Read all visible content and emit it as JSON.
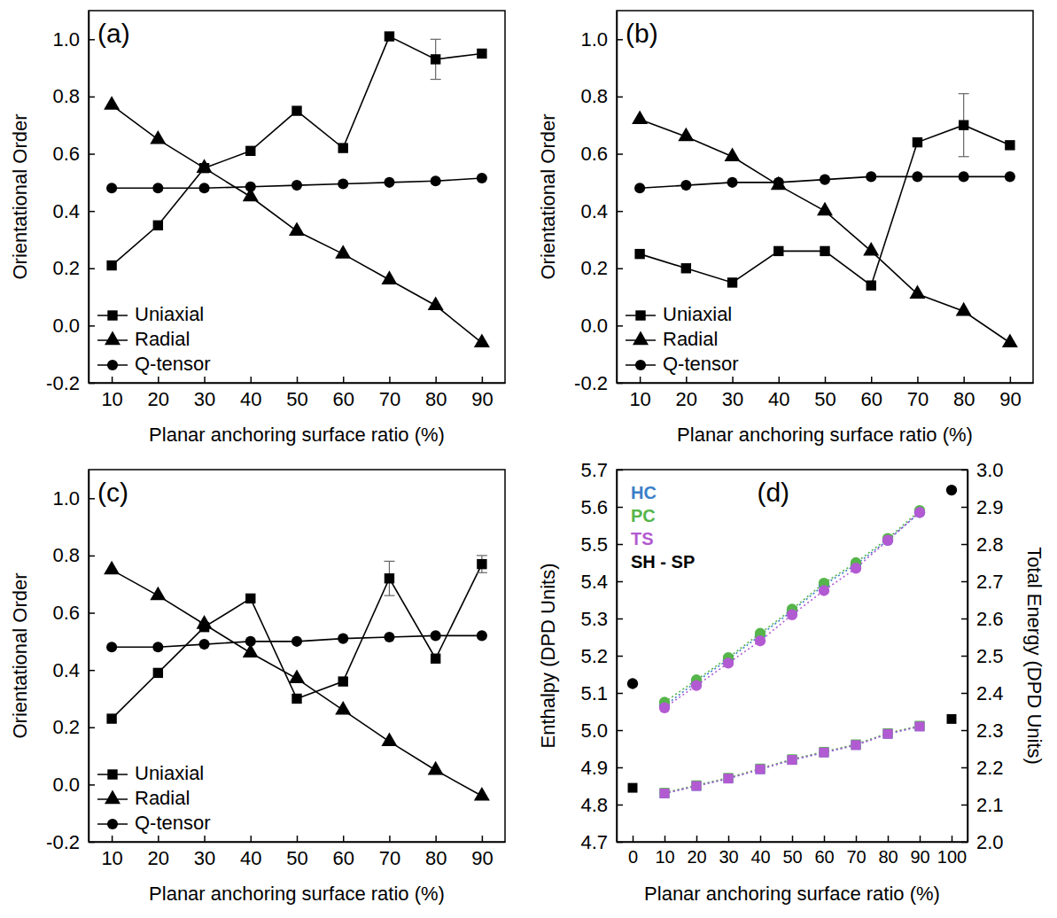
{
  "chart_data": [
    {
      "type": "line",
      "title": "(a)",
      "xlabel": "Planar anchoring surface ratio (%)",
      "ylabel": "Orientational Order",
      "x": [
        10,
        20,
        30,
        40,
        50,
        60,
        70,
        80,
        90
      ],
      "xlim": [
        5,
        95
      ],
      "xticks": [
        10,
        20,
        30,
        40,
        50,
        60,
        70,
        80,
        90
      ],
      "ylim": [
        -0.2,
        1.1
      ],
      "yticks": [
        -0.2,
        {
          "value": 0,
          "label": "0.0"
        },
        0.2,
        0.4,
        0.6,
        0.8,
        {
          "value": 1,
          "label": "1.0"
        }
      ],
      "legend": "lower left",
      "series": [
        {
          "name": "Uniaxial",
          "color": "#000000",
          "marker": "square",
          "values": [
            0.21,
            0.35,
            0.55,
            0.61,
            0.75,
            0.62,
            1.01,
            0.93,
            0.95
          ],
          "errors": [
            null,
            null,
            null,
            null,
            null,
            null,
            null,
            0.07,
            null
          ]
        },
        {
          "name": "Radial",
          "color": "#000000",
          "marker": "triangle",
          "values": [
            0.77,
            0.65,
            0.55,
            0.45,
            0.33,
            0.25,
            0.16,
            0.07,
            -0.06
          ]
        },
        {
          "name": "Q-tensor",
          "color": "#000000",
          "marker": "circle",
          "values": [
            0.48,
            0.48,
            0.48,
            0.485,
            0.49,
            0.495,
            0.5,
            0.505,
            0.515
          ]
        }
      ]
    },
    {
      "type": "line",
      "title": "(b)",
      "xlabel": "Planar anchoring surface ratio (%)",
      "ylabel": "Orientational Order",
      "x": [
        10,
        20,
        30,
        40,
        50,
        60,
        70,
        80,
        90
      ],
      "xlim": [
        5,
        95
      ],
      "xticks": [
        10,
        20,
        30,
        40,
        50,
        60,
        70,
        80,
        90
      ],
      "ylim": [
        -0.2,
        1.1
      ],
      "yticks": [
        -0.2,
        {
          "value": 0,
          "label": "0.0"
        },
        0.2,
        0.4,
        0.6,
        0.8,
        {
          "value": 1,
          "label": "1.0"
        }
      ],
      "legend": "lower left",
      "series": [
        {
          "name": "Uniaxial",
          "color": "#000000",
          "marker": "square",
          "values": [
            0.25,
            0.2,
            0.15,
            0.26,
            0.26,
            0.14,
            0.64,
            0.7,
            0.63
          ],
          "errors": [
            null,
            null,
            null,
            null,
            null,
            null,
            null,
            0.11,
            null
          ]
        },
        {
          "name": "Radial",
          "color": "#000000",
          "marker": "triangle",
          "values": [
            0.72,
            0.66,
            0.59,
            0.49,
            0.4,
            0.26,
            0.11,
            0.05,
            -0.06
          ]
        },
        {
          "name": "Q-tensor",
          "color": "#000000",
          "marker": "circle",
          "values": [
            0.48,
            0.49,
            0.5,
            0.5,
            0.51,
            0.52,
            0.52,
            0.52,
            0.52
          ]
        }
      ]
    },
    {
      "type": "line",
      "title": "(c)",
      "xlabel": "Planar anchoring surface ratio (%)",
      "ylabel": "Orientational Order",
      "x": [
        10,
        20,
        30,
        40,
        50,
        60,
        70,
        80,
        90
      ],
      "xlim": [
        5,
        95
      ],
      "xticks": [
        10,
        20,
        30,
        40,
        50,
        60,
        70,
        80,
        90
      ],
      "ylim": [
        -0.2,
        1.1
      ],
      "yticks": [
        -0.2,
        {
          "value": 0,
          "label": "0.0"
        },
        0.2,
        0.4,
        0.6,
        0.8,
        {
          "value": 1,
          "label": "1.0"
        }
      ],
      "legend": "lower left",
      "series": [
        {
          "name": "Uniaxial",
          "color": "#000000",
          "marker": "square",
          "values": [
            0.23,
            0.39,
            0.55,
            0.65,
            0.3,
            0.36,
            0.72,
            0.44,
            0.77
          ],
          "errors": [
            null,
            null,
            null,
            null,
            null,
            null,
            0.06,
            null,
            0.03
          ]
        },
        {
          "name": "Radial",
          "color": "#000000",
          "marker": "triangle",
          "values": [
            0.75,
            0.66,
            0.56,
            0.46,
            0.37,
            0.26,
            0.15,
            0.05,
            -0.04
          ]
        },
        {
          "name": "Q-tensor",
          "color": "#000000",
          "marker": "circle",
          "values": [
            0.48,
            0.48,
            0.49,
            0.5,
            0.5,
            0.51,
            0.515,
            0.52,
            0.52
          ]
        }
      ]
    },
    {
      "type": "dual_axis_scatter",
      "title": "(d)",
      "xlabel": "Planar anchoring surface ratio (%)",
      "ylabel": "Enthalpy (DPD Units)",
      "y2label": "Total Energy (DPD Units)",
      "xlim": [
        -5,
        105
      ],
      "xticks": [
        0,
        10,
        20,
        30,
        40,
        50,
        60,
        70,
        80,
        90,
        100
      ],
      "ylim": [
        4.7,
        5.7
      ],
      "yticks": [
        4.7,
        4.8,
        4.9,
        {
          "value": 5,
          "label": "5.0"
        },
        5.1,
        5.2,
        5.3,
        5.4,
        5.5,
        5.6,
        5.7
      ],
      "y2lim": [
        2,
        3
      ],
      "y2ticks": [
        {
          "value": 2,
          "label": "2.0"
        },
        2.1,
        2.2,
        2.3,
        2.4,
        2.5,
        2.6,
        2.7,
        2.8,
        2.9,
        {
          "value": 3,
          "label": "3.0"
        }
      ],
      "legend": "upper left",
      "series": [
        {
          "name": "HC",
          "color": "#3b7fc8",
          "line_style": "dotted",
          "x": [
            10,
            20,
            30,
            40,
            50,
            60,
            70,
            80,
            90
          ],
          "values": [
            5.065,
            5.13,
            5.19,
            5.255,
            5.32,
            5.39,
            5.445,
            5.51,
            5.585
          ],
          "total_energy": [
            2.13,
            2.15,
            2.17,
            2.195,
            2.22,
            2.24,
            2.26,
            2.29,
            2.31
          ]
        },
        {
          "name": "PC",
          "color": "#55b54a",
          "line_style": "dotted",
          "x": [
            10,
            20,
            30,
            40,
            50,
            60,
            70,
            80,
            90
          ],
          "values": [
            5.075,
            5.135,
            5.195,
            5.26,
            5.325,
            5.395,
            5.45,
            5.515,
            5.59
          ],
          "total_energy": [
            2.132,
            2.152,
            2.172,
            2.197,
            2.222,
            2.242,
            2.262,
            2.292,
            2.312
          ]
        },
        {
          "name": "TS",
          "color": "#b25ad2",
          "line_style": "dotted",
          "x": [
            10,
            20,
            30,
            40,
            50,
            60,
            70,
            80,
            90
          ],
          "values": [
            5.06,
            5.12,
            5.18,
            5.24,
            5.31,
            5.375,
            5.435,
            5.51,
            5.585
          ],
          "total_energy": [
            2.13,
            2.15,
            2.17,
            2.195,
            2.22,
            2.24,
            2.26,
            2.29,
            2.31
          ]
        },
        {
          "name": "SH - SP",
          "color": "#000000",
          "line_style": "none",
          "x": [
            0,
            100
          ],
          "values": [
            5.125,
            5.645
          ],
          "total_energy": [
            2.145,
            2.33
          ]
        }
      ]
    }
  ]
}
